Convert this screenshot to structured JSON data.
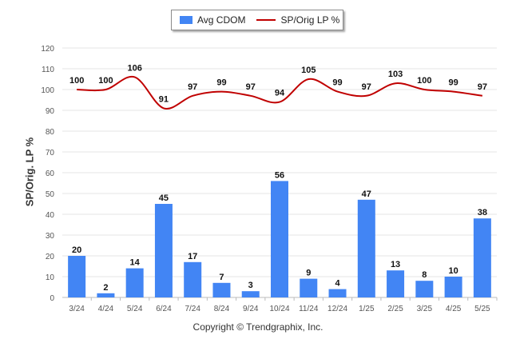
{
  "chart_data": {
    "type": "bar",
    "ylabel": "SP/Orig. LP %",
    "ylim": [
      0,
      120
    ],
    "yticks": [
      0,
      10,
      20,
      30,
      40,
      50,
      60,
      70,
      80,
      90,
      100,
      110,
      120
    ],
    "grid": true,
    "legend_position": "top-center",
    "categories": [
      "3/24",
      "4/24",
      "5/24",
      "6/24",
      "7/24",
      "8/24",
      "9/24",
      "10/24",
      "11/24",
      "12/24",
      "1/25",
      "2/25",
      "3/25",
      "4/25",
      "5/25"
    ],
    "series": [
      {
        "name": "Avg CDOM",
        "type": "bar",
        "color": "#4285f4",
        "values": [
          20,
          2,
          14,
          45,
          17,
          7,
          3,
          56,
          9,
          4,
          47,
          13,
          8,
          10,
          38
        ]
      },
      {
        "name": "SP/Orig LP %",
        "type": "line",
        "color": "#c00000",
        "values": [
          100,
          100,
          106,
          91,
          97,
          99,
          97,
          94,
          105,
          99,
          97,
          103,
          100,
          99,
          97
        ]
      }
    ]
  },
  "footer": {
    "copyright": "Copyright © Trendgraphix, Inc."
  }
}
